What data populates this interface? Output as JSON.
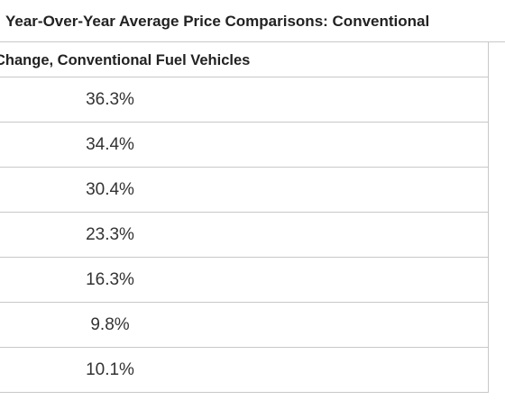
{
  "title": "Year-Over-Year Average Price Comparisons: Conventional",
  "table": {
    "header": "Change, Conventional Fuel Vehicles",
    "rows": [
      "36.3%",
      "34.4%",
      "30.4%",
      "23.3%",
      "16.3%",
      "9.8%",
      "10.1%"
    ]
  }
}
